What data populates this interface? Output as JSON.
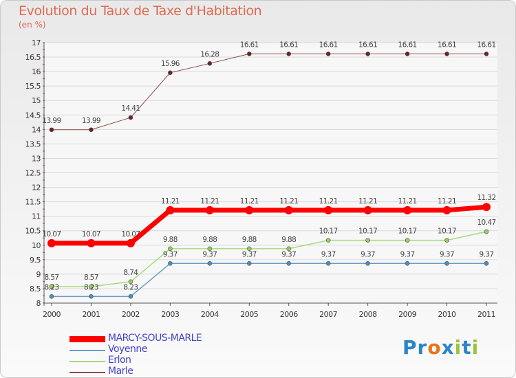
{
  "header": {
    "title": "Evolution du Taux de Taxe d'Habitation",
    "unit": "(en %)"
  },
  "logo": {
    "text": "Proxiti",
    "letters": [
      "P",
      "r",
      "o",
      "x",
      "i",
      "t",
      "i"
    ],
    "colors": [
      "#2a86c8",
      "#2a86c8",
      "#e8741c",
      "#2a86c8",
      "#9bc43c",
      "#2a86c8",
      "#9bc43c"
    ]
  },
  "chart_data": {
    "type": "line",
    "title": "Evolution du Taux de Taxe d'Habitation",
    "ylabel": "(en %)",
    "xlabel": "",
    "x": [
      2000,
      2001,
      2002,
      2003,
      2004,
      2005,
      2006,
      2007,
      2008,
      2009,
      2010,
      2011
    ],
    "ylim": [
      8,
      17
    ],
    "yticks": [
      "8",
      "8.5",
      "9",
      "9.5",
      "10",
      "10.5",
      "11",
      "11.5",
      "12",
      "12.5",
      "13",
      "13.5",
      "14",
      "14.5",
      "15",
      "15.5",
      "16",
      "16.5",
      "17"
    ],
    "legend_position": "bottom-left",
    "series": [
      {
        "name": "MARCY-SOUS-MARLE",
        "color": "#ff0000",
        "width": 7,
        "values": [
          10.07,
          10.07,
          10.07,
          11.21,
          11.21,
          11.21,
          11.21,
          11.21,
          11.21,
          11.21,
          11.21,
          11.32
        ],
        "labels": [
          "10.07",
          "10.07",
          "10.07",
          "11.21",
          "11.21",
          "11.21",
          "11.21",
          "11.21",
          "11.21",
          "11.21",
          "11.21",
          "11.32"
        ]
      },
      {
        "name": "Voyenne",
        "color": "#6a9ec4",
        "width": 1.5,
        "values": [
          8.23,
          8.23,
          8.23,
          9.37,
          9.37,
          9.37,
          9.37,
          9.37,
          9.37,
          9.37,
          9.37,
          9.37
        ],
        "labels": [
          "8.23",
          "8.23",
          "8.23",
          "9.37",
          "9.37",
          "9.37",
          "9.37",
          "9.37",
          "9.37",
          "9.37",
          "9.37",
          "9.37"
        ]
      },
      {
        "name": "Erlon",
        "color": "#a4dc7c",
        "width": 1.5,
        "values": [
          8.57,
          8.57,
          8.74,
          9.88,
          9.88,
          9.88,
          9.88,
          10.17,
          10.17,
          10.17,
          10.17,
          10.47
        ],
        "labels": [
          "8.57",
          "8.57",
          "8.74",
          "9.88",
          "9.88",
          "9.88",
          "9.88",
          "10.17",
          "10.17",
          "10.17",
          "10.17",
          "10.47"
        ]
      },
      {
        "name": "Marle",
        "color": "#8a4a4a",
        "width": 1,
        "values": [
          13.99,
          13.99,
          14.41,
          15.96,
          16.28,
          16.61,
          16.61,
          16.61,
          16.61,
          16.61,
          16.61,
          16.61
        ],
        "labels": [
          "13.99",
          "13.99",
          "14.41",
          "15.96",
          "16.28",
          "16.61",
          "16.61",
          "16.61",
          "16.61",
          "16.61",
          "16.61",
          "16.61"
        ]
      }
    ]
  }
}
